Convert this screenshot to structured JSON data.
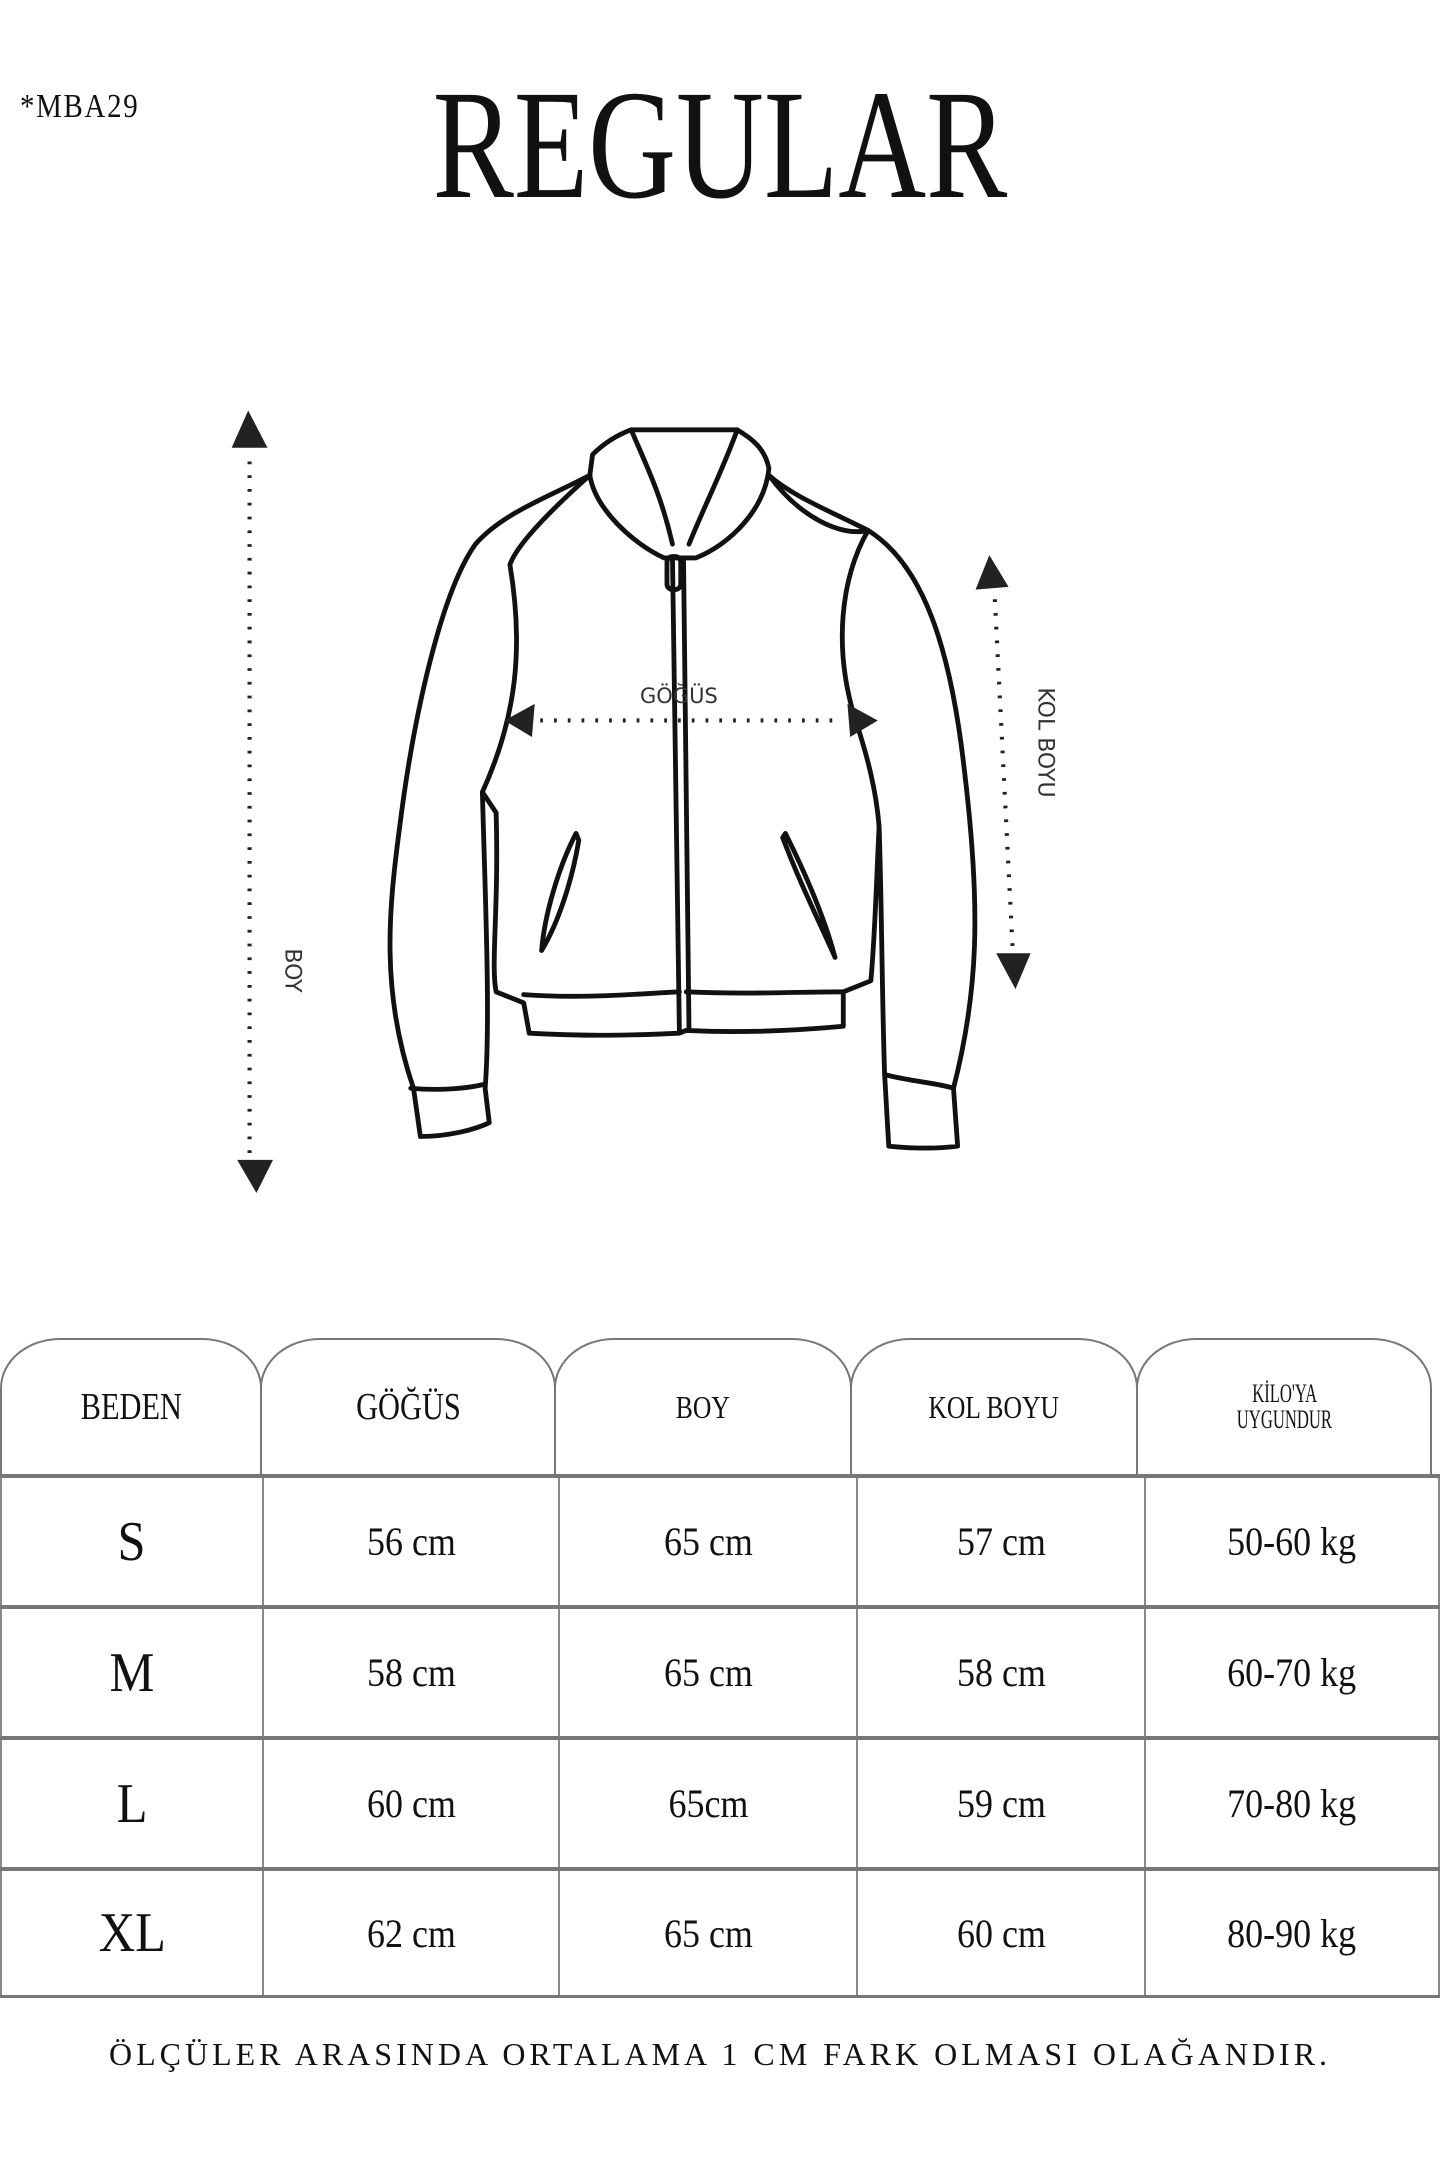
{
  "header": {
    "code": "*MBA29",
    "title": "REGULAR"
  },
  "diagram": {
    "labels": {
      "boy": "BOY",
      "kol_boyu": "KOL BOYU",
      "gogus": "GÖĞÜS"
    }
  },
  "table": {
    "headers": [
      "BEDEN",
      "GÖĞÜS",
      "BOY",
      "KOL BOYU",
      "KİLO'YA UYGUNDUR"
    ],
    "header_kilo_lines": [
      "KİLO'YA",
      "UYGUNDUR"
    ],
    "rows": [
      [
        "S",
        "56 cm",
        "65 cm",
        "57  cm",
        "50-60 kg"
      ],
      [
        "M",
        "58 cm",
        "65 cm",
        "58 cm",
        "60-70 kg"
      ],
      [
        "L",
        "60 cm",
        "65cm",
        "59 cm",
        "70-80 kg"
      ],
      [
        "XL",
        "62 cm",
        "65 cm",
        "60 cm",
        "80-90 kg"
      ]
    ]
  },
  "footer": "ÖLÇÜLER ARASINDA ORTALAMA 1 CM FARK OLMASI OLAĞANDIR."
}
